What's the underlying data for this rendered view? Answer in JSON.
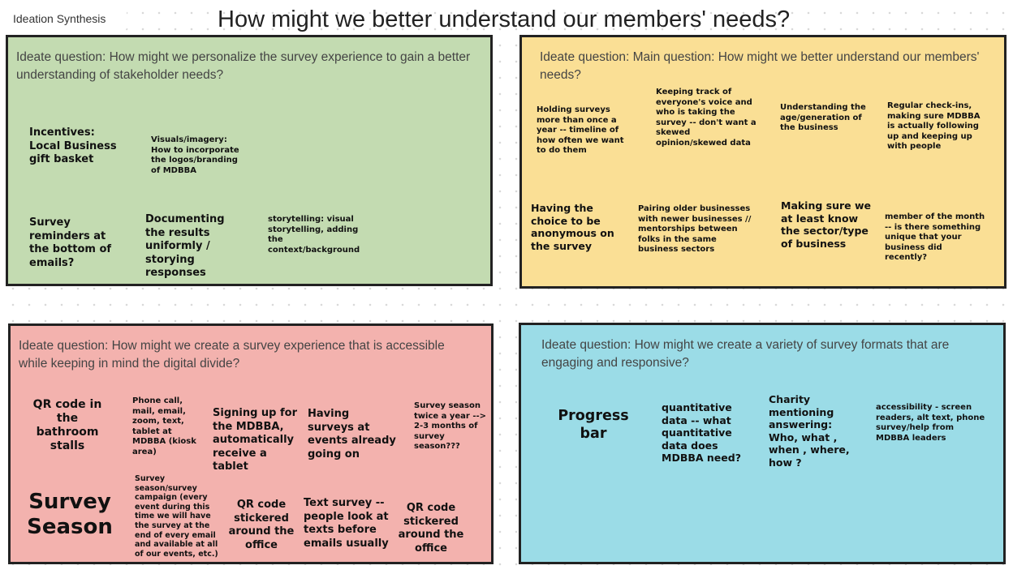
{
  "board": {
    "label": "Ideation Synthesis",
    "title": "How might we better understand our members' needs?"
  },
  "colors": {
    "green_frame": "#c3dbb1",
    "yellow_frame": "#fadf95",
    "red_frame": "#f3b2ae",
    "blue_frame": "#9bdce7",
    "frame_border": "#222222"
  },
  "frames": {
    "green": {
      "question": "Ideate question: How might we personalize the survey experience to gain a better understanding of stakeholder needs?",
      "notes": [
        "Incentives: Local Business gift basket",
        "Visuals/imagery: How to incorporate the logos/branding of MDBBA",
        "Survey reminders at the bottom of emails?",
        "Documenting the results uniformly / storying responses",
        "storytelling: visual storytelling, adding the context/background"
      ]
    },
    "yellow": {
      "question": "Ideate question: Main question: How might we better understand our members' needs?",
      "notes": [
        "Holding surveys more than once a year -- timeline of how often we want to do them",
        "Keeping track of everyone's voice and who is taking the survey -- don't want a skewed opinion/skewed data",
        "Understanding the age/generation of the business",
        "Regular check-ins, making sure MDBBA is actually following up and keeping up with people",
        "Having the choice to be anonymous on the survey",
        "Pairing older businesses with newer businesses // mentorships between folks in the same business sectors",
        "Making sure we at least know the sector/type of business",
        "member of the month -- is there something unique that your business did recently?"
      ]
    },
    "red": {
      "question": "Ideate question: How might we create a survey experience that is accessible while keeping in mind the digital divide?",
      "notes": [
        "QR code in the bathroom stalls",
        "Phone call, mail, email, zoom, text, tablet at MDBBA (kiosk area)",
        "Signing up for the MDBBA, automatically receive a tablet",
        "Having surveys at events already going on",
        "Survey season twice a year --> 2-3 months of survey season???",
        "Survey Season",
        "Survey season/survey campaign (every event during this time we will have the survey at the end of every email and available at all of our events, etc.)",
        "QR code stickered around the office",
        "Text survey -- people look at texts before emails usually",
        "QR code stickered around the office"
      ]
    },
    "blue": {
      "question": "Ideate question: How might we create a variety of survey formats that are engaging and responsive?",
      "notes": [
        "Progress bar",
        "quantitative data -- what quantitative data does MDBBA need?",
        "Charity mentioning answering: Who, what , when , where, how ?",
        "accessibility - screen readers, alt text, phone survey/help from MDBBA leaders"
      ]
    }
  }
}
